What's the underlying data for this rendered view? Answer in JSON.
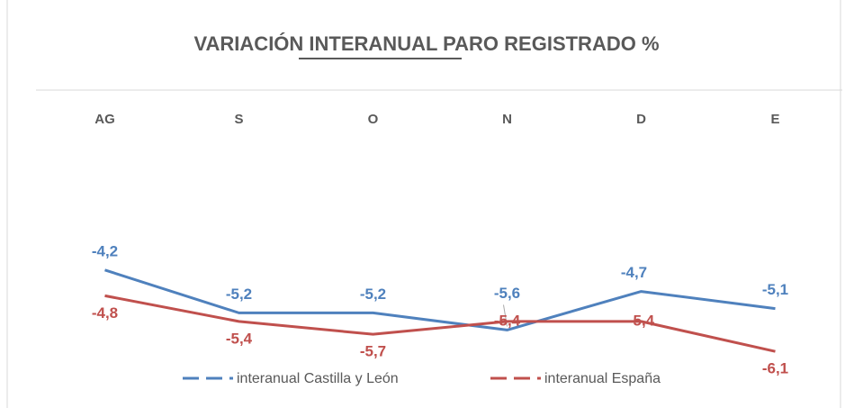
{
  "chart_data": {
    "type": "line",
    "title": "VARIACIÓN INTERANUAL PARO REGISTRADO %",
    "categories": [
      "AG",
      "S",
      "O",
      "N",
      "D",
      "E"
    ],
    "series": [
      {
        "name": "interanual Castilla y León",
        "color": "#4f81bd",
        "values": [
          -4.2,
          -5.2,
          -5.2,
          -5.6,
          -4.7,
          -5.1
        ],
        "value_labels": [
          "-4,2",
          "-5,2",
          "-5,2",
          "-5,6",
          "-4,7",
          "-5,1"
        ]
      },
      {
        "name": "interanual España",
        "color": "#c0504d",
        "values": [
          -4.8,
          -5.4,
          -5.7,
          -5.4,
          -5.4,
          -6.1
        ],
        "value_labels": [
          "-4,8",
          "-5,4",
          "-5,7",
          "-5,4",
          "-5,4",
          "-6,1"
        ]
      }
    ],
    "ylim": [
      -7,
      0
    ],
    "legend": "bottom"
  }
}
